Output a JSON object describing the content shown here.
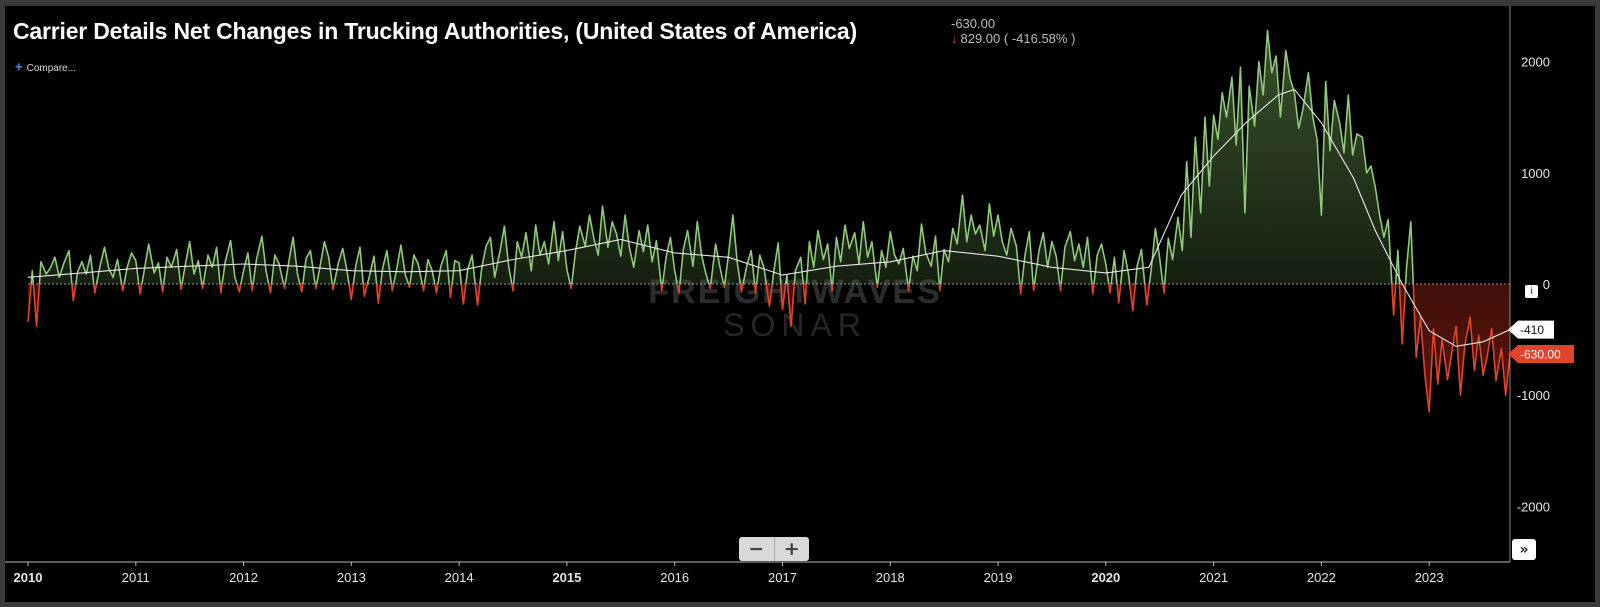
{
  "header": {
    "title": "Carrier Details Net Changes in Trucking Authorities, (United States of America)",
    "current_value": "-630.00",
    "change_text": "829.00 ( -416.58% )",
    "compare_label": "Compare...",
    "info_label": "i"
  },
  "controls": {
    "zoom_out_label": "−",
    "zoom_in_label": "+",
    "scroll_right_label": "»"
  },
  "watermark": {
    "line1": "FREIGHTWAVES",
    "line2": "SONAR"
  },
  "colors": {
    "background": "#000000",
    "positive": "#8fc97a",
    "positive_fill": "#4c6d3a",
    "negative": "#e0452c",
    "negative_fill": "#6b1a10",
    "moving_average": "#e8e8e8",
    "axis_text": "#e6e6e6"
  },
  "chart_data": {
    "type": "line",
    "title": "Carrier Details Net Changes in Trucking Authorities, (United States of America)",
    "x_range": [
      2010.0,
      2023.75
    ],
    "ylim": [
      -2500,
      2500
    ],
    "y_ticks": [
      2000,
      1000,
      0,
      -1000,
      -2000
    ],
    "x_ticks": [
      {
        "value": 2010,
        "label": "2010",
        "bold": true
      },
      {
        "value": 2011,
        "label": "2011",
        "bold": false
      },
      {
        "value": 2012,
        "label": "2012",
        "bold": false
      },
      {
        "value": 2013,
        "label": "2013",
        "bold": false
      },
      {
        "value": 2014,
        "label": "2014",
        "bold": false
      },
      {
        "value": 2015,
        "label": "2015",
        "bold": true
      },
      {
        "value": 2016,
        "label": "2016",
        "bold": false
      },
      {
        "value": 2017,
        "label": "2017",
        "bold": false
      },
      {
        "value": 2018,
        "label": "2018",
        "bold": false
      },
      {
        "value": 2019,
        "label": "2019",
        "bold": false
      },
      {
        "value": 2020,
        "label": "2020",
        "bold": true
      },
      {
        "value": 2021,
        "label": "2021",
        "bold": false
      },
      {
        "value": 2022,
        "label": "2022",
        "bold": false
      },
      {
        "value": 2023,
        "label": "2023",
        "bold": false
      }
    ],
    "grid": false,
    "reference_line": 0,
    "series": [
      {
        "style": "weekly",
        "x": [
          2010.0,
          2010.04,
          2010.08,
          2010.12,
          2010.17,
          2010.21,
          2010.25,
          2010.29,
          2010.33,
          2010.38,
          2010.42,
          2010.46,
          2010.5,
          2010.54,
          2010.58,
          2010.62,
          2010.67,
          2010.71,
          2010.75,
          2010.79,
          2010.83,
          2010.88,
          2010.92,
          2010.96,
          2011.0,
          2011.04,
          2011.08,
          2011.12,
          2011.17,
          2011.21,
          2011.25,
          2011.29,
          2011.33,
          2011.38,
          2011.42,
          2011.46,
          2011.5,
          2011.54,
          2011.58,
          2011.62,
          2011.67,
          2011.71,
          2011.75,
          2011.79,
          2011.83,
          2011.88,
          2011.92,
          2011.96,
          2012.0,
          2012.04,
          2012.08,
          2012.12,
          2012.17,
          2012.21,
          2012.25,
          2012.29,
          2012.33,
          2012.38,
          2012.42,
          2012.46,
          2012.5,
          2012.54,
          2012.58,
          2012.62,
          2012.67,
          2012.71,
          2012.75,
          2012.79,
          2012.83,
          2012.88,
          2012.92,
          2012.96,
          2013.0,
          2013.04,
          2013.08,
          2013.12,
          2013.17,
          2013.21,
          2013.25,
          2013.29,
          2013.33,
          2013.38,
          2013.42,
          2013.46,
          2013.5,
          2013.54,
          2013.58,
          2013.62,
          2013.67,
          2013.71,
          2013.75,
          2013.79,
          2013.83,
          2013.88,
          2013.92,
          2013.96,
          2014.0,
          2014.04,
          2014.08,
          2014.12,
          2014.17,
          2014.21,
          2014.25,
          2014.29,
          2014.33,
          2014.38,
          2014.42,
          2014.46,
          2014.5,
          2014.54,
          2014.58,
          2014.62,
          2014.67,
          2014.71,
          2014.75,
          2014.79,
          2014.83,
          2014.88,
          2014.92,
          2014.96,
          2015.0,
          2015.04,
          2015.08,
          2015.12,
          2015.17,
          2015.21,
          2015.25,
          2015.29,
          2015.33,
          2015.38,
          2015.42,
          2015.46,
          2015.5,
          2015.54,
          2015.58,
          2015.62,
          2015.67,
          2015.71,
          2015.75,
          2015.79,
          2015.83,
          2015.88,
          2015.92,
          2015.96,
          2016.0,
          2016.04,
          2016.08,
          2016.12,
          2016.17,
          2016.21,
          2016.25,
          2016.29,
          2016.33,
          2016.38,
          2016.42,
          2016.46,
          2016.5,
          2016.54,
          2016.58,
          2016.62,
          2016.67,
          2016.71,
          2016.75,
          2016.79,
          2016.83,
          2016.88,
          2016.92,
          2016.96,
          2017.0,
          2017.04,
          2017.08,
          2017.12,
          2017.17,
          2017.21,
          2017.25,
          2017.29,
          2017.33,
          2017.38,
          2017.42,
          2017.46,
          2017.5,
          2017.54,
          2017.58,
          2017.62,
          2017.67,
          2017.71,
          2017.75,
          2017.79,
          2017.83,
          2017.88,
          2017.92,
          2017.96,
          2018.0,
          2018.04,
          2018.08,
          2018.12,
          2018.17,
          2018.21,
          2018.25,
          2018.29,
          2018.33,
          2018.38,
          2018.42,
          2018.46,
          2018.5,
          2018.54,
          2018.58,
          2018.62,
          2018.67,
          2018.71,
          2018.75,
          2018.79,
          2018.83,
          2018.88,
          2018.92,
          2018.96,
          2019.0,
          2019.04,
          2019.08,
          2019.12,
          2019.17,
          2019.21,
          2019.25,
          2019.29,
          2019.33,
          2019.38,
          2019.42,
          2019.46,
          2019.5,
          2019.54,
          2019.58,
          2019.62,
          2019.67,
          2019.71,
          2019.75,
          2019.79,
          2019.83,
          2019.88,
          2019.92,
          2019.96,
          2020.0,
          2020.04,
          2020.08,
          2020.12,
          2020.17,
          2020.21,
          2020.25,
          2020.29,
          2020.33,
          2020.38,
          2020.42,
          2020.46,
          2020.5,
          2020.54,
          2020.58,
          2020.62,
          2020.67,
          2020.71,
          2020.75,
          2020.79,
          2020.83,
          2020.88,
          2020.92,
          2020.96,
          2021.0,
          2021.04,
          2021.08,
          2021.12,
          2021.17,
          2021.21,
          2021.25,
          2021.29,
          2021.33,
          2021.38,
          2021.42,
          2021.46,
          2021.5,
          2021.54,
          2021.58,
          2021.62,
          2021.67,
          2021.71,
          2021.75,
          2021.79,
          2021.83,
          2021.88,
          2021.92,
          2021.96,
          2022.0,
          2022.04,
          2022.08,
          2022.12,
          2022.17,
          2022.21,
          2022.25,
          2022.29,
          2022.33,
          2022.38,
          2022.42,
          2022.46,
          2022.5,
          2022.54,
          2022.58,
          2022.62,
          2022.67,
          2022.71,
          2022.75,
          2022.79,
          2022.83,
          2022.88,
          2022.92,
          2022.96,
          2023.0,
          2023.04,
          2023.08,
          2023.12,
          2023.17,
          2023.21,
          2023.25,
          2023.29,
          2023.33,
          2023.38,
          2023.42,
          2023.46,
          2023.5,
          2023.54,
          2023.58,
          2023.62,
          2023.67,
          2023.71,
          2023.75
        ],
        "y": [
          -340,
          120,
          -380,
          200,
          90,
          150,
          240,
          60,
          180,
          300,
          -150,
          110,
          200,
          90,
          260,
          -80,
          170,
          330,
          140,
          60,
          220,
          -60,
          150,
          280,
          210,
          -90,
          130,
          360,
          100,
          190,
          -70,
          240,
          150,
          310,
          -50,
          180,
          380,
          90,
          210,
          -40,
          260,
          150,
          330,
          -80,
          200,
          390,
          60,
          -70,
          120,
          280,
          -60,
          220,
          430,
          110,
          -80,
          260,
          180,
          -40,
          200,
          420,
          90,
          -70,
          230,
          300,
          -40,
          160,
          380,
          240,
          -50,
          190,
          320,
          120,
          -140,
          160,
          330,
          -110,
          80,
          250,
          -170,
          140,
          300,
          -60,
          130,
          350,
          90,
          -30,
          260,
          180,
          -60,
          220,
          120,
          -80,
          160,
          300,
          -120,
          210,
          190,
          -180,
          130,
          260,
          -190,
          150,
          340,
          420,
          60,
          300,
          520,
          160,
          -60,
          380,
          240,
          460,
          120,
          530,
          260,
          380,
          180,
          560,
          210,
          470,
          130,
          -40,
          290,
          520,
          340,
          620,
          410,
          260,
          700,
          330,
          560,
          450,
          250,
          620,
          330,
          150,
          480,
          290,
          530,
          200,
          390,
          -60,
          240,
          420,
          120,
          -80,
          310,
          480,
          160,
          560,
          260,
          90,
          -40,
          360,
          150,
          -30,
          270,
          620,
          200,
          -70,
          170,
          300,
          -80,
          260,
          140,
          -200,
          120,
          370,
          -230,
          80,
          -380,
          120,
          240,
          -180,
          380,
          150,
          480,
          220,
          360,
          -60,
          420,
          200,
          530,
          320,
          460,
          180,
          560,
          240,
          380,
          -30,
          300,
          150,
          470,
          260,
          180,
          320,
          -60,
          250,
          120,
          540,
          280,
          160,
          430,
          -60,
          310,
          200,
          500,
          360,
          800,
          380,
          620,
          450,
          530,
          300,
          720,
          430,
          620,
          380,
          260,
          500,
          340,
          -90,
          260,
          470,
          -60,
          300,
          460,
          150,
          380,
          250,
          -60,
          330,
          470,
          210,
          360,
          150,
          420,
          -90,
          260,
          360,
          180,
          -80,
          240,
          -170,
          300,
          90,
          -240,
          160,
          310,
          -190,
          120,
          500,
          230,
          -80,
          410,
          220,
          600,
          300,
          1100,
          420,
          1320,
          640,
          1500,
          880,
          1520,
          1300,
          1720,
          1500,
          1860,
          1250,
          1950,
          640,
          1780,
          1420,
          2000,
          1700,
          2280,
          1900,
          2050,
          1500,
          2100,
          1850,
          1720,
          1400,
          1580,
          1900,
          1500,
          1300,
          620,
          1820,
          1200,
          1650,
          1450,
          1180,
          1700,
          1160,
          1350,
          1320,
          1000,
          1060,
          870,
          620,
          420,
          580,
          -280,
          300,
          -540,
          140,
          560,
          -660,
          -300,
          -820,
          -1150,
          -400,
          -900,
          -500,
          -860,
          -620,
          -380,
          -1000,
          -560,
          -300,
          -780,
          -460,
          -820,
          -640,
          -400,
          -870,
          -580,
          -1000,
          -630
        ]
      },
      {
        "style": "moving_average",
        "x": [
          2010.0,
          2010.5,
          2011.0,
          2011.5,
          2012.0,
          2012.5,
          2013.0,
          2013.5,
          2014.0,
          2014.5,
          2015.0,
          2015.5,
          2016.0,
          2016.5,
          2017.0,
          2017.5,
          2018.0,
          2018.5,
          2019.0,
          2019.5,
          2020.0,
          2020.4,
          2020.7,
          2021.0,
          2021.3,
          2021.6,
          2021.75,
          2022.0,
          2022.3,
          2022.5,
          2022.75,
          2023.0,
          2023.25,
          2023.5,
          2023.75
        ],
        "y": [
          60,
          100,
          140,
          160,
          180,
          160,
          120,
          110,
          120,
          220,
          300,
          400,
          280,
          240,
          80,
          160,
          200,
          300,
          250,
          150,
          100,
          150,
          800,
          1150,
          1450,
          1700,
          1750,
          1450,
          950,
          480,
          0,
          -420,
          -560,
          -520,
          -410
        ]
      }
    ],
    "markers": [
      {
        "label": "-410",
        "value": -410,
        "style": "moving_average"
      },
      {
        "label": "-630.00",
        "value": -630,
        "style": "last_value"
      }
    ]
  }
}
